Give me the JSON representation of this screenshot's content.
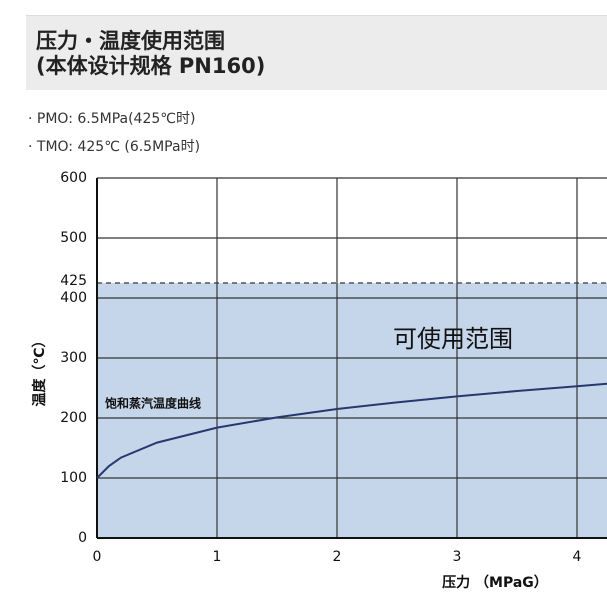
{
  "header": {
    "title_lines": [
      "压力・温度使用范围",
      "(本体设计规格 PN160)"
    ]
  },
  "notes": [
    "· PMO: 6.5MPa(425℃时)",
    "· TMO: 425℃ (6.5MPa时)"
  ],
  "chart_data": {
    "type": "line",
    "x_label": "压力 （MPaG）",
    "y_label": "温度（℃）",
    "xlim": [
      0,
      4.25
    ],
    "xticks": [
      0,
      1,
      2,
      3,
      4
    ],
    "ylim": [
      0,
      600
    ],
    "yticks": [
      0,
      100,
      200,
      300,
      400,
      425,
      500,
      600
    ],
    "grid": true,
    "region": {
      "label": "可使用范围",
      "to": 425,
      "color": "#c6d6ea"
    },
    "series": [
      {
        "name": "饱和蒸汽温度曲线",
        "color": "#27386f",
        "x": [
          0,
          0.1,
          0.2,
          0.5,
          1.0,
          1.5,
          2.0,
          2.5,
          3.0,
          3.5,
          4.0,
          4.25
        ],
        "values": [
          100,
          120,
          134,
          159,
          184,
          201,
          215,
          226,
          236,
          245,
          253,
          257
        ]
      }
    ]
  }
}
